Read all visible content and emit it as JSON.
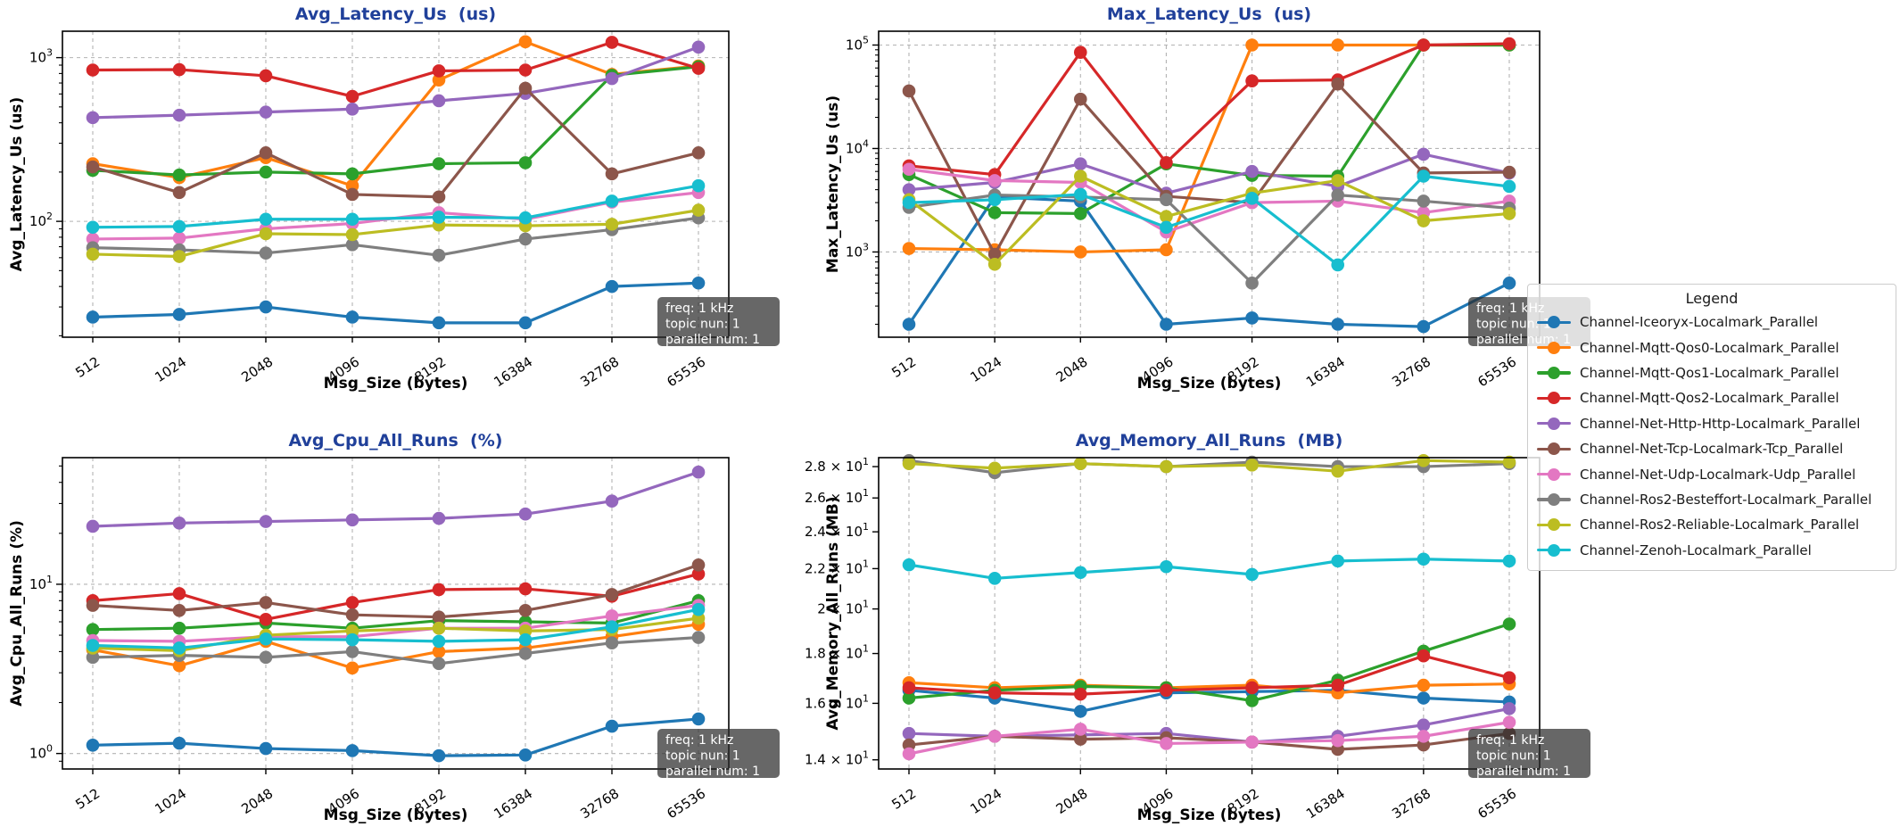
{
  "figure": {
    "title_color": "#20409a",
    "grid_color": "#b3b3b3",
    "axis_color": "#000000",
    "background": "#ffffff",
    "annotation": {
      "lines": [
        "freq: 1 kHz",
        "topic nun: 1",
        "parallel num: 1"
      ],
      "bg": "rgba(45,45,45,0.72)",
      "text_color": "#ffffff"
    }
  },
  "legend": {
    "title": "Legend",
    "entries": [
      {
        "label": "Channel-Iceoryx-Localmark_Parallel",
        "color": "#1f77b4"
      },
      {
        "label": "Channel-Mqtt-Qos0-Localmark_Parallel",
        "color": "#ff7f0e"
      },
      {
        "label": "Channel-Mqtt-Qos1-Localmark_Parallel",
        "color": "#2ca02c"
      },
      {
        "label": "Channel-Mqtt-Qos2-Localmark_Parallel",
        "color": "#d62728"
      },
      {
        "label": "Channel-Net-Http-Http-Localmark_Parallel",
        "color": "#9467bd"
      },
      {
        "label": "Channel-Net-Tcp-Localmark-Tcp_Parallel",
        "color": "#8c564b"
      },
      {
        "label": "Channel-Net-Udp-Localmark-Udp_Parallel",
        "color": "#e377c2"
      },
      {
        "label": "Channel-Ros2-Besteffort-Localmark_Parallel",
        "color": "#7f7f7f"
      },
      {
        "label": "Channel-Ros2-Reliable-Localmark_Parallel",
        "color": "#bcbd22"
      },
      {
        "label": "Channel-Zenoh-Localmark_Parallel",
        "color": "#17becf"
      }
    ]
  },
  "chart_data": [
    {
      "type": "line",
      "id": "avg-latency-us",
      "title": "Avg_Latency_Us  (us)",
      "ylabel": "Avg_Latency_Us (us)",
      "xlabel": "Msg_Size (bytes)",
      "x_categories": [
        "512",
        "1024",
        "2048",
        "4096",
        "8192",
        "16384",
        "32768",
        "65536"
      ],
      "yscale": "log",
      "ylim": [
        19.6,
        1450
      ],
      "grid": true,
      "yticks": [
        {
          "v": 100,
          "pre": "10",
          "sup": "2"
        },
        {
          "v": 1000,
          "pre": "10",
          "sup": "3"
        }
      ],
      "series": [
        {
          "name": "Channel-Iceoryx-Localmark_Parallel",
          "values": [
            26,
            27,
            30,
            26,
            24,
            24,
            40,
            42
          ]
        },
        {
          "name": "Channel-Mqtt-Qos0-Localmark_Parallel",
          "values": [
            225,
            185,
            245,
            165,
            730,
            1250,
            790,
            890
          ]
        },
        {
          "name": "Channel-Mqtt-Qos1-Localmark_Parallel",
          "values": [
            205,
            192,
            200,
            195,
            225,
            228,
            780,
            880
          ]
        },
        {
          "name": "Channel-Mqtt-Qos2-Localmark_Parallel",
          "values": [
            840,
            845,
            775,
            580,
            830,
            840,
            1240,
            860
          ]
        },
        {
          "name": "Channel-Net-Http-Http-Localmark_Parallel",
          "values": [
            430,
            445,
            465,
            485,
            545,
            605,
            745,
            1160
          ]
        },
        {
          "name": "Channel-Net-Tcp-Localmark-Tcp_Parallel",
          "values": [
            215,
            150,
            262,
            146,
            141,
            650,
            195,
            262
          ]
        },
        {
          "name": "Channel-Net-Udp-Localmark-Udp_Parallel",
          "values": [
            78,
            79,
            90,
            97,
            113,
            103,
            131,
            150
          ]
        },
        {
          "name": "Channel-Ros2-Besteffort-Localmark_Parallel",
          "values": [
            69,
            67,
            64,
            72,
            62,
            78,
            89,
            105
          ]
        },
        {
          "name": "Channel-Ros2-Reliable-Localmark_Parallel",
          "values": [
            63,
            61,
            84,
            83,
            95,
            94,
            96,
            117
          ]
        },
        {
          "name": "Channel-Zenoh-Localmark_Parallel",
          "values": [
            92,
            93,
            103,
            103,
            106,
            105,
            133,
            165
          ]
        }
      ]
    },
    {
      "type": "line",
      "id": "max-latency-us",
      "title": "Max_Latency_Us  (us)",
      "ylabel": "Max_Latency_Us (us)",
      "xlabel": "Msg_Size (bytes)",
      "x_categories": [
        "512",
        "1024",
        "2048",
        "4096",
        "8192",
        "16384",
        "32768",
        "65536"
      ],
      "yscale": "log",
      "ylim": [
        150,
        136000
      ],
      "grid": true,
      "yticks": [
        {
          "v": 1000,
          "pre": "10",
          "sup": "3"
        },
        {
          "v": 10000,
          "pre": "10",
          "sup": "4"
        },
        {
          "v": 100000,
          "pre": "10",
          "sup": "5"
        }
      ],
      "series": [
        {
          "name": "Channel-Iceoryx-Localmark_Parallel",
          "values": [
            200,
            3400,
            3100,
            200,
            230,
            200,
            190,
            500
          ]
        },
        {
          "name": "Channel-Mqtt-Qos0-Localmark_Parallel",
          "values": [
            1080,
            1050,
            1000,
            1050,
            100000,
            100000,
            100000,
            100000
          ]
        },
        {
          "name": "Channel-Mqtt-Qos1-Localmark_Parallel",
          "values": [
            5600,
            2400,
            2350,
            7100,
            5500,
            5400,
            100000,
            100000
          ]
        },
        {
          "name": "Channel-Mqtt-Qos2-Localmark_Parallel",
          "values": [
            6800,
            5600,
            85000,
            7300,
            45000,
            46000,
            100000,
            103000
          ]
        },
        {
          "name": "Channel-Net-Http-Http-Localmark_Parallel",
          "values": [
            4000,
            4700,
            7100,
            3700,
            6000,
            4300,
            8800,
            5800
          ]
        },
        {
          "name": "Channel-Net-Tcp-Localmark-Tcp_Parallel",
          "values": [
            36000,
            950,
            30000,
            3450,
            3000,
            42000,
            5800,
            5900
          ]
        },
        {
          "name": "Channel-Net-Udp-Localmark-Udp_Parallel",
          "values": [
            6300,
            4900,
            4700,
            1560,
            3000,
            3100,
            2400,
            3100
          ]
        },
        {
          "name": "Channel-Ros2-Besteffort-Localmark_Parallel",
          "values": [
            2700,
            3550,
            3400,
            3200,
            500,
            3550,
            3100,
            2650
          ]
        },
        {
          "name": "Channel-Ros2-Reliable-Localmark_Parallel",
          "values": [
            3200,
            760,
            5400,
            2200,
            3700,
            4900,
            2000,
            2350
          ]
        },
        {
          "name": "Channel-Zenoh-Localmark_Parallel",
          "values": [
            3000,
            3200,
            3600,
            1730,
            3300,
            750,
            5400,
            4300
          ]
        }
      ]
    },
    {
      "type": "line",
      "id": "avg-cpu-all-runs",
      "title": "Avg_Cpu_All_Runs  (%)",
      "ylabel": "Avg_Cpu_All_Runs (%)",
      "xlabel": "Msg_Size (bytes)",
      "x_categories": [
        "512",
        "1024",
        "2048",
        "4096",
        "8192",
        "16384",
        "32768",
        "65536"
      ],
      "yscale": "log",
      "ylim": [
        0.81,
        56
      ],
      "grid": true,
      "yticks": [
        {
          "v": 1,
          "pre": "10",
          "sup": "0"
        },
        {
          "v": 10,
          "pre": "10",
          "sup": "1"
        }
      ],
      "series": [
        {
          "name": "Channel-Iceoryx-Localmark_Parallel",
          "values": [
            1.12,
            1.15,
            1.07,
            1.04,
            0.97,
            0.98,
            1.45,
            1.6
          ]
        },
        {
          "name": "Channel-Mqtt-Qos0-Localmark_Parallel",
          "values": [
            4.1,
            3.3,
            4.6,
            3.2,
            4.0,
            4.2,
            4.9,
            5.8
          ]
        },
        {
          "name": "Channel-Mqtt-Qos1-Localmark_Parallel",
          "values": [
            5.4,
            5.5,
            5.9,
            5.5,
            6.1,
            6.0,
            5.9,
            8.0
          ]
        },
        {
          "name": "Channel-Mqtt-Qos2-Localmark_Parallel",
          "values": [
            8.0,
            8.8,
            6.2,
            7.8,
            9.3,
            9.4,
            8.5,
            11.5
          ]
        },
        {
          "name": "Channel-Net-Http-Http-Localmark_Parallel",
          "values": [
            22,
            23,
            23.5,
            24,
            24.5,
            26,
            31,
            46
          ]
        },
        {
          "name": "Channel-Net-Tcp-Localmark-Tcp_Parallel",
          "values": [
            7.5,
            7.0,
            7.8,
            6.6,
            6.4,
            7.0,
            8.7,
            13
          ]
        },
        {
          "name": "Channel-Net-Udp-Localmark-Udp_Parallel",
          "values": [
            4.65,
            4.6,
            4.9,
            4.9,
            5.5,
            5.5,
            6.5,
            7.5
          ]
        },
        {
          "name": "Channel-Ros2-Besteffort-Localmark_Parallel",
          "values": [
            3.7,
            3.8,
            3.7,
            4.0,
            3.4,
            3.9,
            4.5,
            4.85
          ]
        },
        {
          "name": "Channel-Ros2-Reliable-Localmark_Parallel",
          "values": [
            4.2,
            4.05,
            5.0,
            5.3,
            5.5,
            5.3,
            5.4,
            6.3
          ]
        },
        {
          "name": "Channel-Zenoh-Localmark_Parallel",
          "values": [
            4.35,
            4.2,
            4.75,
            4.7,
            4.6,
            4.7,
            5.6,
            7.1
          ]
        }
      ]
    },
    {
      "type": "line",
      "id": "avg-memory-all-runs",
      "title": "Avg_Memory_All_Runs  (MB)",
      "ylabel": "Avg_Memory_All_Runs (MB)",
      "xlabel": "Msg_Size (bytes)",
      "x_categories": [
        "512",
        "1024",
        "2048",
        "4096",
        "8192",
        "16384",
        "32768",
        "65536"
      ],
      "yscale": "log",
      "ylim": [
        13.7,
        28.6
      ],
      "grid": false,
      "yticks": [
        {
          "v": 14,
          "pre": "1.4 × 10",
          "sup": "1"
        },
        {
          "v": 16,
          "pre": "1.6 × 10",
          "sup": "1"
        },
        {
          "v": 18,
          "pre": "1.8 × 10",
          "sup": "1"
        },
        {
          "v": 20,
          "pre": "2 × 10",
          "sup": "1"
        },
        {
          "v": 22,
          "pre": "2.2 × 10",
          "sup": "1"
        },
        {
          "v": 24,
          "pre": "2.4 × 10",
          "sup": "1"
        },
        {
          "v": 26,
          "pre": "2.6 × 10",
          "sup": "1"
        },
        {
          "v": 28,
          "pre": "2.8 × 10",
          "sup": "1"
        }
      ],
      "series": [
        {
          "name": "Channel-Iceoryx-Localmark_Parallel",
          "values": [
            16.5,
            16.2,
            15.7,
            16.4,
            16.45,
            16.5,
            16.2,
            16.05
          ]
        },
        {
          "name": "Channel-Mqtt-Qos0-Localmark_Parallel",
          "values": [
            16.8,
            16.6,
            16.7,
            16.6,
            16.7,
            16.4,
            16.7,
            16.75
          ]
        },
        {
          "name": "Channel-Mqtt-Qos1-Localmark_Parallel",
          "values": [
            16.2,
            16.5,
            16.65,
            16.6,
            16.1,
            16.9,
            18.1,
            19.3
          ]
        },
        {
          "name": "Channel-Mqtt-Qos2-Localmark_Parallel",
          "values": [
            16.6,
            16.4,
            16.35,
            16.5,
            16.6,
            16.7,
            17.9,
            17.0
          ]
        },
        {
          "name": "Channel-Net-Http-Http-Localmark_Parallel",
          "values": [
            14.9,
            14.8,
            14.85,
            14.9,
            14.6,
            14.8,
            15.2,
            15.8
          ]
        },
        {
          "name": "Channel-Net-Tcp-Localmark-Tcp_Parallel",
          "values": [
            14.5,
            14.8,
            14.7,
            14.75,
            14.6,
            14.35,
            14.5,
            14.9
          ]
        },
        {
          "name": "Channel-Net-Udp-Localmark-Udp_Parallel",
          "values": [
            14.2,
            14.8,
            15.05,
            14.55,
            14.6,
            14.65,
            14.8,
            15.3
          ]
        },
        {
          "name": "Channel-Ros2-Besteffort-Localmark_Parallel",
          "values": [
            28.4,
            27.6,
            28.2,
            28.0,
            28.3,
            28.0,
            28.0,
            28.2
          ]
        },
        {
          "name": "Channel-Ros2-Reliable-Localmark_Parallel",
          "values": [
            28.2,
            27.9,
            28.2,
            28.0,
            28.1,
            27.7,
            28.4,
            28.3
          ]
        },
        {
          "name": "Channel-Zenoh-Localmark_Parallel",
          "values": [
            22.2,
            21.5,
            21.8,
            22.1,
            21.7,
            22.4,
            22.5,
            22.4
          ]
        }
      ]
    }
  ]
}
